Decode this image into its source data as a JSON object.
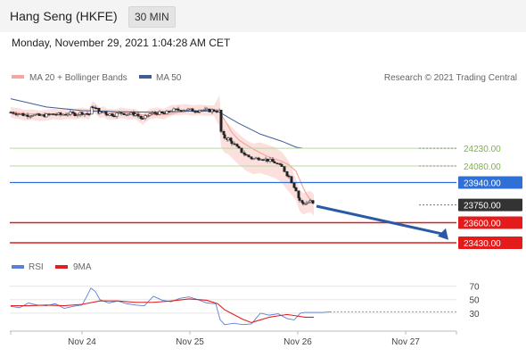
{
  "header": {
    "title": "Hang Seng (HKFE)",
    "interval": "30 MIN"
  },
  "datetime": "Monday, November 29, 2021 1:04:28 AM CET",
  "legend": {
    "bollinger": "MA 20 + Bollinger Bands",
    "ma50": "MA 50",
    "copyright": "Research © 2021 Trading Central",
    "rsi": "RSI",
    "rsi_ma": "9MA"
  },
  "colors": {
    "bollinger": "#f4a7a0",
    "ma50": "#3f5e96",
    "rsi": "#5b7fd6",
    "rsi_ma": "#e02020",
    "green_level": "#7cb342",
    "blue_level": "#2f6fd6",
    "red_level": "#e31b1b",
    "current_level": "#333333"
  },
  "chart_data": [
    {
      "type": "line",
      "title": "",
      "series_names": [
        "MA 20 + Bollinger Bands",
        "MA 50"
      ],
      "x_ticks": [
        "Nov 24",
        "Nov 25",
        "Nov 26",
        "Nov 27"
      ],
      "levels": [
        {
          "value": "24230.00",
          "kind": "resistance",
          "color": "#7cb342"
        },
        {
          "value": "24080.00",
          "kind": "resistance",
          "color": "#7cb342"
        },
        {
          "value": "23940.00",
          "kind": "pivot",
          "color": "#2f6fd6"
        },
        {
          "value": "23750.00",
          "kind": "last",
          "color": "#333333"
        },
        {
          "value": "23600.00",
          "kind": "support",
          "color": "#e31b1b"
        },
        {
          "value": "23430.00",
          "kind": "support",
          "color": "#e31b1b"
        }
      ],
      "ylim": [
        23430,
        24730
      ],
      "price_path": [
        [
          0,
          24535
        ],
        [
          8,
          24525
        ],
        [
          16,
          24510
        ],
        [
          24,
          24515
        ],
        [
          32,
          24505
        ],
        [
          40,
          24510
        ],
        [
          48,
          24520
        ],
        [
          56,
          24515
        ],
        [
          64,
          24525
        ],
        [
          72,
          24520
        ],
        [
          80,
          24530
        ],
        [
          88,
          24520
        ],
        [
          92,
          24585
        ],
        [
          96,
          24560
        ],
        [
          100,
          24530
        ],
        [
          104,
          24540
        ],
        [
          108,
          24520
        ],
        [
          116,
          24515
        ],
        [
          124,
          24530
        ],
        [
          132,
          24520
        ],
        [
          140,
          24520
        ],
        [
          148,
          24475
        ],
        [
          156,
          24520
        ],
        [
          164,
          24530
        ],
        [
          172,
          24520
        ],
        [
          180,
          24550
        ],
        [
          188,
          24555
        ],
        [
          196,
          24560
        ],
        [
          204,
          24550
        ],
        [
          212,
          24555
        ],
        [
          220,
          24550
        ],
        [
          228,
          24550
        ],
        [
          234,
          24545
        ],
        [
          236,
          24370
        ],
        [
          240,
          24320
        ],
        [
          244,
          24310
        ],
        [
          248,
          24280
        ],
        [
          256,
          24220
        ],
        [
          264,
          24170
        ],
        [
          272,
          24140
        ],
        [
          280,
          24150
        ],
        [
          288,
          24130
        ],
        [
          296,
          24110
        ],
        [
          304,
          24070
        ],
        [
          312,
          23990
        ],
        [
          320,
          23880
        ],
        [
          324,
          23790
        ],
        [
          328,
          23760
        ],
        [
          332,
          23770
        ],
        [
          336,
          23780
        ],
        [
          340,
          23750
        ]
      ],
      "ma50_path": [
        [
          0,
          24650
        ],
        [
          40,
          24580
        ],
        [
          80,
          24550
        ],
        [
          120,
          24540
        ],
        [
          160,
          24535
        ],
        [
          200,
          24545
        ],
        [
          232,
          24545
        ],
        [
          256,
          24440
        ],
        [
          280,
          24350
        ],
        [
          304,
          24290
        ],
        [
          320,
          24240
        ],
        [
          328,
          24230
        ]
      ]
    },
    {
      "type": "line",
      "title": "",
      "series_names": [
        "RSI",
        "9MA"
      ],
      "y_ticks": [
        "70",
        "50",
        "30"
      ],
      "ylim": [
        10,
        80
      ],
      "rsi_path": [
        [
          0,
          40
        ],
        [
          10,
          38
        ],
        [
          20,
          45
        ],
        [
          30,
          42
        ],
        [
          40,
          41
        ],
        [
          50,
          44
        ],
        [
          60,
          37
        ],
        [
          70,
          40
        ],
        [
          80,
          42
        ],
        [
          85,
          54
        ],
        [
          90,
          67
        ],
        [
          95,
          62
        ],
        [
          100,
          50
        ],
        [
          110,
          45
        ],
        [
          120,
          48
        ],
        [
          130,
          44
        ],
        [
          140,
          42
        ],
        [
          150,
          41
        ],
        [
          160,
          55
        ],
        [
          170,
          49
        ],
        [
          180,
          47
        ],
        [
          190,
          52
        ],
        [
          200,
          54
        ],
        [
          210,
          50
        ],
        [
          220,
          45
        ],
        [
          230,
          44
        ],
        [
          235,
          20
        ],
        [
          240,
          13
        ],
        [
          250,
          15
        ],
        [
          260,
          13
        ],
        [
          270,
          14
        ],
        [
          280,
          30
        ],
        [
          290,
          27
        ],
        [
          300,
          29
        ],
        [
          310,
          22
        ],
        [
          318,
          20
        ],
        [
          325,
          30
        ],
        [
          330,
          31
        ],
        [
          340,
          31
        ],
        [
          350,
          31
        ],
        [
          360,
          32
        ]
      ],
      "rsi_ma_path": [
        [
          0,
          41
        ],
        [
          20,
          41
        ],
        [
          40,
          42
        ],
        [
          60,
          41
        ],
        [
          80,
          43
        ],
        [
          100,
          48
        ],
        [
          120,
          48
        ],
        [
          140,
          46
        ],
        [
          160,
          46
        ],
        [
          180,
          48
        ],
        [
          200,
          51
        ],
        [
          220,
          49
        ],
        [
          232,
          44
        ],
        [
          240,
          35
        ],
        [
          250,
          28
        ],
        [
          260,
          21
        ],
        [
          270,
          16
        ],
        [
          280,
          20
        ],
        [
          290,
          24
        ],
        [
          300,
          26
        ],
        [
          310,
          28
        ],
        [
          320,
          26
        ],
        [
          330,
          24
        ],
        [
          340,
          24
        ]
      ]
    }
  ]
}
